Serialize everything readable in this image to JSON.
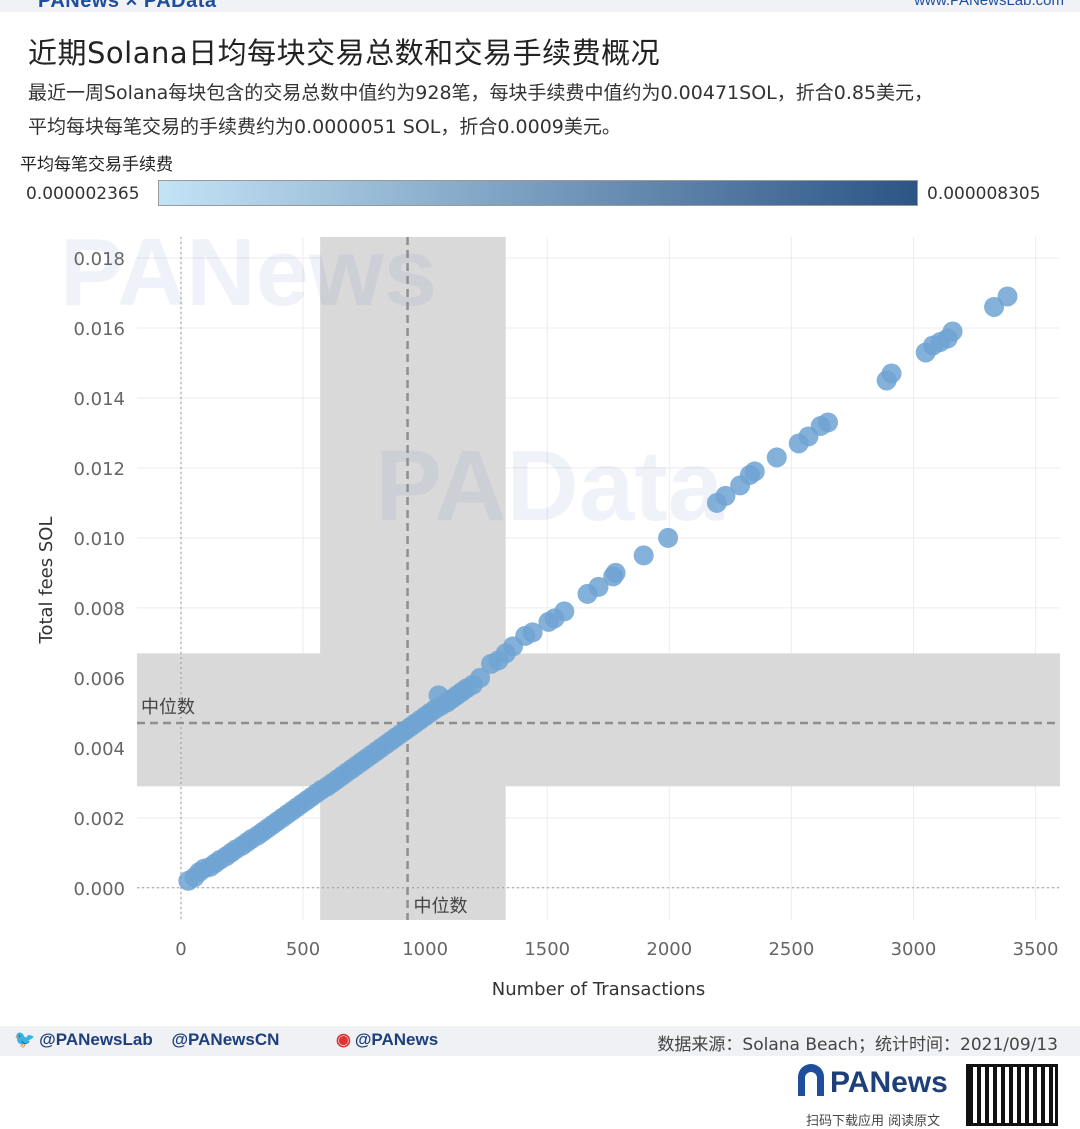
{
  "header": {
    "brand": "PANews × PAData",
    "site": "www.PANewsLab.com"
  },
  "title": "近期Solana日均每块交易总数和交易手续费概况",
  "subtitle_lines": [
    "最近一周Solana每块包含的交易总数中值约为928笔，每块手续费中值约为0.00471SOL，折合0.85美元，",
    "平均每块每笔交易的手续费约为0.0000051 SOL，折合0.0009美元。"
  ],
  "legend": {
    "title": "平均每笔交易手续费",
    "min_label": "0.000002365",
    "max_label": "0.000008305",
    "color_low": "#c3e3f6",
    "color_high": "#2c5585"
  },
  "chart_data": {
    "type": "scatter",
    "xlabel": "Number of Transactions",
    "ylabel": "Total fees SOL",
    "xlim": [
      -180,
      3600
    ],
    "ylim": [
      -0.00092,
      0.0186
    ],
    "x_ticks": [
      0,
      500,
      1000,
      1500,
      2000,
      2500,
      3000,
      3500
    ],
    "y_ticks": [
      0.0,
      0.002,
      0.004,
      0.006,
      0.008,
      0.01,
      0.012,
      0.014,
      0.016,
      0.018
    ],
    "y_tick_labels": [
      "0.000",
      "0.002",
      "0.004",
      "0.006",
      "0.008",
      "0.010",
      "0.012",
      "0.014",
      "0.016",
      "0.018"
    ],
    "grid": true,
    "marker_color": "#6fa3d2",
    "reference_lines": [
      {
        "axis": "x",
        "value": 928,
        "label": "中位数",
        "band": [
          570,
          1330
        ]
      },
      {
        "axis": "y",
        "value": 0.00471,
        "label": "中位数",
        "band": [
          0.0029,
          0.0067
        ]
      }
    ],
    "points": [
      [
        30,
        0.0002
      ],
      [
        55,
        0.0003
      ],
      [
        75,
        0.00045
      ],
      [
        95,
        0.00055
      ],
      [
        120,
        0.0006
      ],
      [
        140,
        0.0007
      ],
      [
        160,
        0.0008
      ],
      [
        185,
        0.0009
      ],
      [
        205,
        0.001
      ],
      [
        225,
        0.0011
      ],
      [
        250,
        0.0012
      ],
      [
        270,
        0.0013
      ],
      [
        290,
        0.0014
      ],
      [
        315,
        0.0015
      ],
      [
        335,
        0.0016
      ],
      [
        355,
        0.0017
      ],
      [
        375,
        0.0018
      ],
      [
        395,
        0.0019
      ],
      [
        415,
        0.002
      ],
      [
        435,
        0.0021
      ],
      [
        455,
        0.0022
      ],
      [
        475,
        0.0023
      ],
      [
        495,
        0.0024
      ],
      [
        515,
        0.0025
      ],
      [
        535,
        0.0026
      ],
      [
        555,
        0.0027
      ],
      [
        575,
        0.0028
      ],
      [
        600,
        0.0029
      ],
      [
        620,
        0.003
      ],
      [
        640,
        0.0031
      ],
      [
        660,
        0.0032
      ],
      [
        680,
        0.0033
      ],
      [
        700,
        0.0034
      ],
      [
        720,
        0.0035
      ],
      [
        740,
        0.0036
      ],
      [
        760,
        0.0037
      ],
      [
        780,
        0.0038
      ],
      [
        800,
        0.0039
      ],
      [
        820,
        0.004
      ],
      [
        840,
        0.0041
      ],
      [
        860,
        0.0042
      ],
      [
        880,
        0.0043
      ],
      [
        900,
        0.0044
      ],
      [
        920,
        0.0045
      ],
      [
        940,
        0.0046
      ],
      [
        960,
        0.0047
      ],
      [
        980,
        0.0048
      ],
      [
        1000,
        0.0049
      ],
      [
        1020,
        0.005
      ],
      [
        1040,
        0.0051
      ],
      [
        1055,
        0.0055
      ],
      [
        1065,
        0.0052
      ],
      [
        1090,
        0.0053
      ],
      [
        1110,
        0.0054
      ],
      [
        1130,
        0.0055
      ],
      [
        1150,
        0.0056
      ],
      [
        1170,
        0.0057
      ],
      [
        1195,
        0.0058
      ],
      [
        1225,
        0.006
      ],
      [
        1270,
        0.0064
      ],
      [
        1300,
        0.0065
      ],
      [
        1330,
        0.0067
      ],
      [
        1360,
        0.0069
      ],
      [
        1410,
        0.0072
      ],
      [
        1440,
        0.0073
      ],
      [
        1505,
        0.0076
      ],
      [
        1530,
        0.0077
      ],
      [
        1570,
        0.0079
      ],
      [
        1665,
        0.0084
      ],
      [
        1710,
        0.0086
      ],
      [
        1770,
        0.0089
      ],
      [
        1780,
        0.009
      ],
      [
        1895,
        0.0095
      ],
      [
        1995,
        0.01
      ],
      [
        2195,
        0.011
      ],
      [
        2230,
        0.0112
      ],
      [
        2290,
        0.0115
      ],
      [
        2330,
        0.0118
      ],
      [
        2350,
        0.0119
      ],
      [
        2440,
        0.0123
      ],
      [
        2530,
        0.0127
      ],
      [
        2570,
        0.0129
      ],
      [
        2620,
        0.0132
      ],
      [
        2650,
        0.0133
      ],
      [
        2890,
        0.0145
      ],
      [
        2910,
        0.0147
      ],
      [
        3050,
        0.0153
      ],
      [
        3080,
        0.0155
      ],
      [
        3110,
        0.0156
      ],
      [
        3140,
        0.0157
      ],
      [
        3160,
        0.0159
      ],
      [
        3330,
        0.0166
      ],
      [
        3385,
        0.0169
      ]
    ]
  },
  "watermarks": [
    "PANews",
    "PAData"
  ],
  "footer": {
    "twitter_lab": "@PANewsLab",
    "twitter_cn": "@PANewsCN",
    "weibo": "@PANews",
    "source": "数据来源：Solana Beach；统计时间：2021/09/13",
    "logo_text": "PANews",
    "cta": "扫码下载应用 阅读原文"
  }
}
